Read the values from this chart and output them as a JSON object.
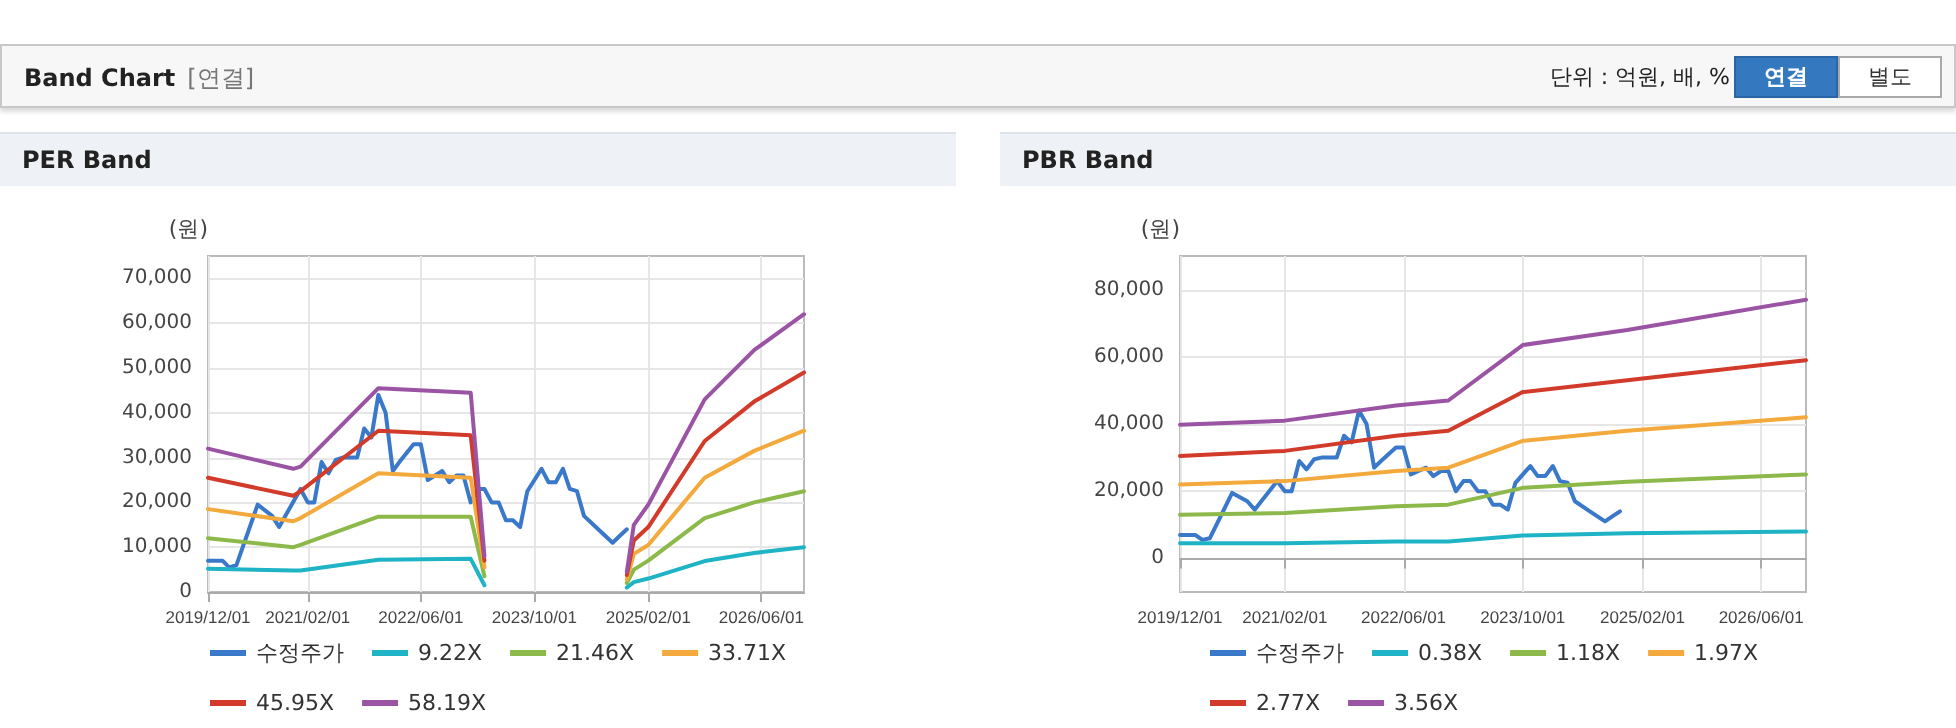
{
  "chart_data": [
    {
      "type": "line",
      "title": "PER Band",
      "ylabel": "(원)",
      "annotations": [
        "Band Chart",
        "[연결]",
        "단위 : 억원, 배, %",
        "연결",
        "별도"
      ],
      "xlim": [
        "2019-12",
        "2026-12"
      ],
      "xticks": [
        {
          "value": "2019-12-01",
          "label": "2019/12/01"
        },
        {
          "value": "2021-02-01",
          "label": "2021/02/01"
        },
        {
          "value": "2022-06-01",
          "label": "2022/06/01"
        },
        {
          "value": "2023-10-01",
          "label": "2023/10/01"
        },
        {
          "value": "2025-02-01",
          "label": "2025/02/01"
        },
        {
          "value": "2026-06-01",
          "label": "2026/06/01"
        }
      ],
      "ylim": [
        0,
        75000
      ],
      "yticks": [
        {
          "value": 0,
          "label": "0"
        },
        {
          "value": 10000,
          "label": "10,000"
        },
        {
          "value": 20000,
          "label": "20,000"
        },
        {
          "value": 30000,
          "label": "30,000"
        },
        {
          "value": 40000,
          "label": "40,000"
        },
        {
          "value": 50000,
          "label": "50,000"
        },
        {
          "value": 60000,
          "label": "60,000"
        },
        {
          "value": 70000,
          "label": "70,000"
        }
      ],
      "grid": true,
      "legend": "bottom",
      "marker": "none",
      "line_style": "solid",
      "series": [
        {
          "name": "수정주가",
          "color": "#3a78c9",
          "x": [
            "2019-12",
            "2020-02",
            "2020-03",
            "2020-04",
            "2020-07",
            "2020-09",
            "2020-10",
            "2021-01",
            "2021-02",
            "2021-03",
            "2021-04",
            "2021-05",
            "2021-06",
            "2021-07",
            "2021-09",
            "2021-10",
            "2021-11",
            "2021-12",
            "2022-01",
            "2022-02",
            "2022-03",
            "2022-05",
            "2022-06",
            "2022-07",
            "2022-08",
            "2022-09",
            "2022-10",
            "2022-11",
            "2022-12",
            "2023-01",
            "2023-02",
            "2023-03",
            "2023-04",
            "2023-05",
            "2023-06",
            "2023-07",
            "2023-08",
            "2023-09",
            "2023-11",
            "2023-12",
            "2024-01",
            "2024-02",
            "2024-03",
            "2024-04",
            "2024-05",
            "2024-07",
            "2024-09",
            "2024-10",
            "2024-11"
          ],
          "values": [
            7000,
            7000,
            5500,
            6000,
            19500,
            17000,
            14500,
            23000,
            20000,
            20000,
            29000,
            26500,
            29500,
            30000,
            30000,
            36500,
            34500,
            44000,
            40000,
            27000,
            29000,
            33000,
            33000,
            25000,
            26000,
            27000,
            24500,
            26000,
            26000,
            20000,
            23000,
            23000,
            20000,
            20000,
            16000,
            16000,
            14500,
            22500,
            27500,
            24500,
            24500,
            27500,
            23000,
            22500,
            17000,
            14000,
            11000,
            12500,
            14000
          ]
        },
        {
          "name": "9.22X",
          "color": "#1fb3c6",
          "x": [
            "2019-12",
            "2020-12",
            "2021-01",
            "2021-12",
            "2023-01",
            "2023-03",
            "2023-06",
            "2024-11",
            "2024-12",
            "2025-02",
            "2025-10",
            "2026-05",
            "2026-12"
          ],
          "values": [
            5200,
            4800,
            4800,
            7200,
            7400,
            1500,
            null,
            1000,
            2200,
            3000,
            6900,
            8700,
            10000
          ]
        },
        {
          "name": "21.46X",
          "color": "#8db84a",
          "x": [
            "2019-12",
            "2020-12",
            "2021-01",
            "2021-12",
            "2023-01",
            "2023-03",
            "2023-06",
            "2024-11",
            "2024-12",
            "2025-02",
            "2025-10",
            "2026-05",
            "2026-12"
          ],
          "values": [
            12000,
            10000,
            10500,
            16800,
            16800,
            3500,
            null,
            2000,
            5000,
            7000,
            16500,
            20000,
            22500
          ]
        },
        {
          "name": "33.71X",
          "color": "#f3a93c",
          "x": [
            "2019-12",
            "2020-12",
            "2021-01",
            "2021-12",
            "2023-01",
            "2023-03",
            "2023-06",
            "2024-11",
            "2024-12",
            "2025-02",
            "2025-10",
            "2026-05",
            "2026-12"
          ],
          "values": [
            18500,
            15800,
            16500,
            26500,
            25500,
            5500,
            null,
            2800,
            8500,
            10500,
            25500,
            31500,
            36000
          ]
        },
        {
          "name": "45.95X",
          "color": "#d23a2a",
          "x": [
            "2019-12",
            "2020-12",
            "2021-01",
            "2021-12",
            "2023-01",
            "2023-03",
            "2023-06",
            "2024-11",
            "2024-12",
            "2025-02",
            "2025-10",
            "2026-05",
            "2026-12"
          ],
          "values": [
            25500,
            21500,
            22500,
            36000,
            35000,
            7000,
            null,
            3800,
            11500,
            14500,
            33700,
            42500,
            49000
          ]
        },
        {
          "name": "58.19X",
          "color": "#9b54a4",
          "x": [
            "2019-12",
            "2020-12",
            "2021-01",
            "2021-12",
            "2023-01",
            "2023-03",
            "2023-06",
            "2024-11",
            "2024-12",
            "2025-02",
            "2025-10",
            "2026-05",
            "2026-12"
          ],
          "values": [
            32000,
            27500,
            28000,
            45500,
            44500,
            8000,
            null,
            4500,
            15000,
            19500,
            43000,
            54000,
            62000
          ]
        }
      ]
    },
    {
      "type": "line",
      "title": "PBR Band",
      "ylabel": "(원)",
      "xlim": [
        "2019-12",
        "2026-12"
      ],
      "xticks": [
        {
          "value": "2019-12-01",
          "label": "2019/12/01"
        },
        {
          "value": "2021-02-01",
          "label": "2021/02/01"
        },
        {
          "value": "2022-06-01",
          "label": "2022/06/01"
        },
        {
          "value": "2023-10-01",
          "label": "2023/10/01"
        },
        {
          "value": "2025-02-01",
          "label": "2025/02/01"
        },
        {
          "value": "2026-06-01",
          "label": "2026/06/01"
        }
      ],
      "ylim": [
        -10000,
        90000
      ],
      "yticks": [
        {
          "value": 0,
          "label": "0"
        },
        {
          "value": 20000,
          "label": "20,000"
        },
        {
          "value": 40000,
          "label": "40,000"
        },
        {
          "value": 60000,
          "label": "60,000"
        },
        {
          "value": 80000,
          "label": "80,000"
        }
      ],
      "grid": true,
      "legend": "bottom",
      "marker": "none",
      "line_style": "solid",
      "series": [
        {
          "name": "수정주가",
          "color": "#3a78c9",
          "x": [
            "2019-12",
            "2020-02",
            "2020-03",
            "2020-04",
            "2020-07",
            "2020-09",
            "2020-10",
            "2021-01",
            "2021-02",
            "2021-03",
            "2021-04",
            "2021-05",
            "2021-06",
            "2021-07",
            "2021-09",
            "2021-10",
            "2021-11",
            "2021-12",
            "2022-01",
            "2022-02",
            "2022-03",
            "2022-05",
            "2022-06",
            "2022-07",
            "2022-08",
            "2022-09",
            "2022-10",
            "2022-11",
            "2022-12",
            "2023-01",
            "2023-02",
            "2023-03",
            "2023-04",
            "2023-05",
            "2023-06",
            "2023-07",
            "2023-08",
            "2023-09",
            "2023-11",
            "2023-12",
            "2024-01",
            "2024-02",
            "2024-03",
            "2024-04",
            "2024-05",
            "2024-07",
            "2024-09",
            "2024-10",
            "2024-11"
          ],
          "values": [
            7000,
            7000,
            5500,
            6000,
            19500,
            17000,
            14500,
            23000,
            20000,
            20000,
            29000,
            26500,
            29500,
            30000,
            30000,
            36500,
            34500,
            44000,
            40000,
            27000,
            29000,
            33000,
            33000,
            25000,
            26000,
            27000,
            24500,
            26000,
            26000,
            20000,
            23000,
            23000,
            20000,
            20000,
            16000,
            16000,
            14500,
            22500,
            27500,
            24500,
            24500,
            27500,
            23000,
            22500,
            17000,
            14000,
            11000,
            12500,
            14000
          ]
        },
        {
          "name": "0.38X",
          "color": "#1fb3c6",
          "x": [
            "2019-12",
            "2021-02",
            "2022-05",
            "2022-12",
            "2023-10",
            "2024-12",
            "2026-12"
          ],
          "values": [
            4500,
            4500,
            5000,
            5000,
            6800,
            7500,
            8000
          ]
        },
        {
          "name": "1.18X",
          "color": "#8db84a",
          "x": [
            "2019-12",
            "2021-02",
            "2022-05",
            "2022-12",
            "2023-10",
            "2024-12",
            "2026-12"
          ],
          "values": [
            13000,
            13500,
            15500,
            16000,
            21000,
            22800,
            25000
          ]
        },
        {
          "name": "1.97X",
          "color": "#f3a93c",
          "x": [
            "2019-12",
            "2021-02",
            "2022-05",
            "2022-12",
            "2023-10",
            "2024-12",
            "2026-12"
          ],
          "values": [
            22000,
            23000,
            26000,
            27000,
            35000,
            38000,
            42000
          ]
        },
        {
          "name": "2.77X",
          "color": "#d23a2a",
          "x": [
            "2019-12",
            "2021-02",
            "2022-05",
            "2022-12",
            "2023-10",
            "2024-12",
            "2026-12"
          ],
          "values": [
            30500,
            32000,
            36500,
            38000,
            49500,
            53000,
            59000
          ]
        },
        {
          "name": "3.56X",
          "color": "#9b54a4",
          "x": [
            "2019-12",
            "2021-02",
            "2022-05",
            "2022-12",
            "2023-10",
            "2024-12",
            "2026-12"
          ],
          "values": [
            39800,
            41000,
            45500,
            47000,
            63500,
            68000,
            77000
          ]
        }
      ]
    }
  ]
}
